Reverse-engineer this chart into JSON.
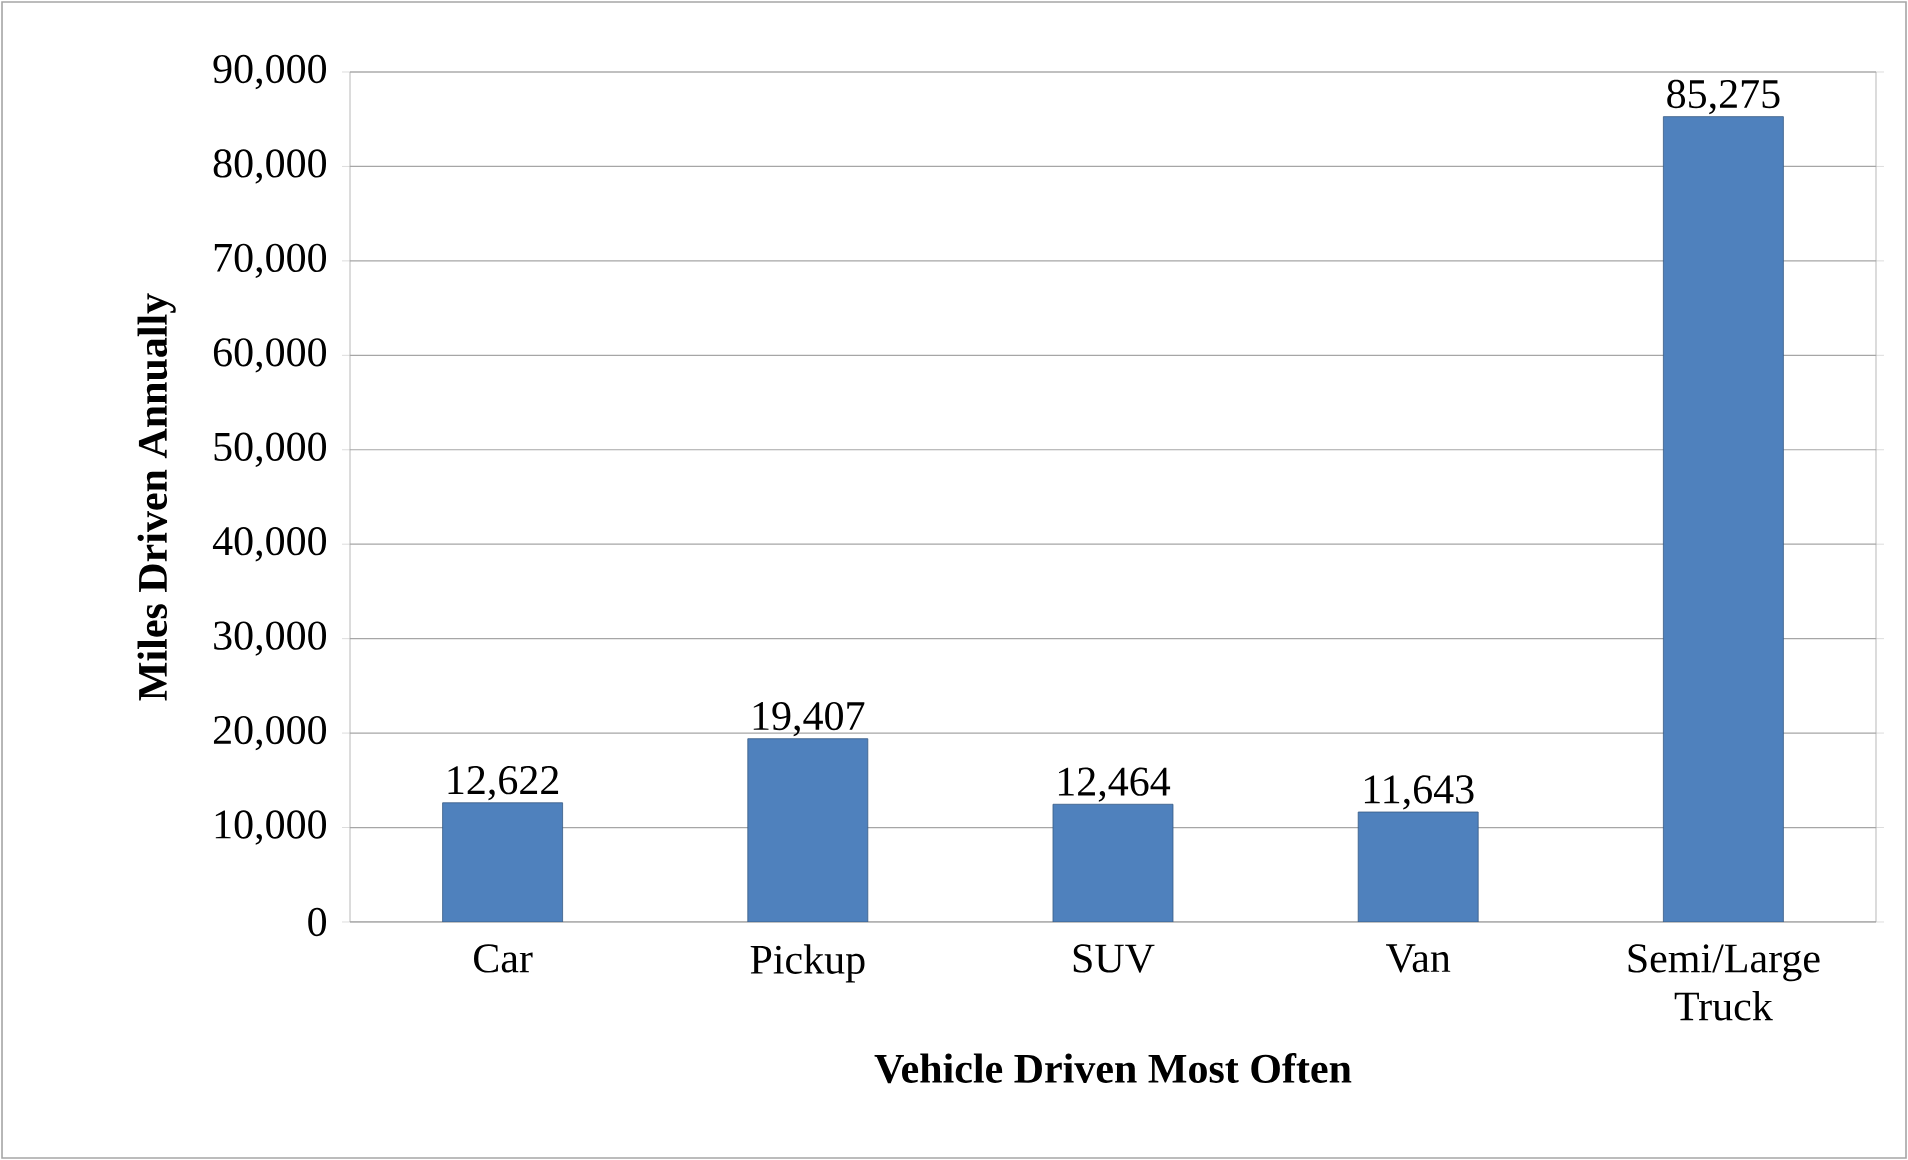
{
  "chart_data": {
    "type": "bar",
    "xlabel": "Vehicle Driven Most Often",
    "ylabel": "Miles Driven Annually",
    "categories": [
      "Car",
      "Pickup",
      "SUV",
      "Van",
      "Semi/Large Truck"
    ],
    "values": [
      12622,
      19407,
      12464,
      11643,
      85275
    ],
    "value_labels": [
      "12,622",
      "19,407",
      "12,464",
      "11,643",
      "85,275"
    ],
    "color": "#4f81bd",
    "ylim": [
      0,
      90000
    ],
    "yticks": [
      0,
      {
        "value": 10000,
        "label": "10,000"
      },
      {
        "value": 20000,
        "label": "20,000"
      },
      {
        "value": 30000,
        "label": "30,000"
      },
      {
        "value": 40000,
        "label": "40,000"
      },
      {
        "value": 50000,
        "label": "50,000"
      },
      {
        "value": 60000,
        "label": "60,000"
      },
      {
        "value": 70000,
        "label": "70,000"
      },
      {
        "value": 80000,
        "label": "80,000"
      },
      {
        "value": 90000,
        "label": "90,000"
      }
    ],
    "grid": "y"
  }
}
